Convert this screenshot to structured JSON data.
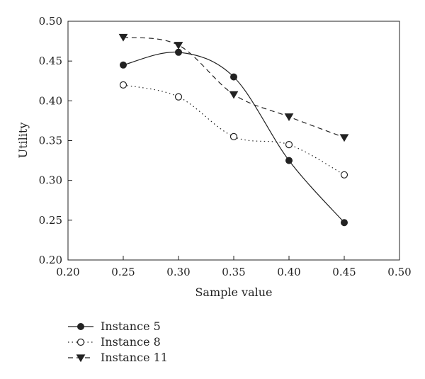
{
  "chart_data": {
    "type": "line",
    "title": "",
    "xlabel": "Sample value",
    "ylabel": "Utility",
    "xlim": [
      0.2,
      0.5
    ],
    "ylim": [
      0.2,
      0.5
    ],
    "xticks": [
      "0.20",
      "0.25",
      "0.30",
      "0.35",
      "0.40",
      "0.45",
      "0.50"
    ],
    "yticks": [
      "0.20",
      "0.25",
      "0.30",
      "0.35",
      "0.40",
      "0.45",
      "0.50"
    ],
    "grid": false,
    "legend_position": "bottom-left",
    "x": [
      0.25,
      0.3,
      0.35,
      0.4,
      0.45
    ],
    "series": [
      {
        "name": "Instance 5",
        "values": [
          0.445,
          0.461,
          0.43,
          0.325,
          0.247
        ],
        "line_style": "solid",
        "marker": "filled-circle",
        "smooth": true,
        "color": "#222222"
      },
      {
        "name": "Instance 8",
        "values": [
          0.42,
          0.405,
          0.355,
          0.345,
          0.307
        ],
        "line_style": "dotted",
        "marker": "open-circle",
        "smooth": true,
        "color": "#222222"
      },
      {
        "name": "Instance 11",
        "values": [
          0.48,
          0.47,
          0.408,
          0.38,
          0.354
        ],
        "line_style": "dashed",
        "marker": "filled-triangle-down",
        "smooth": true,
        "color": "#222222"
      }
    ]
  }
}
